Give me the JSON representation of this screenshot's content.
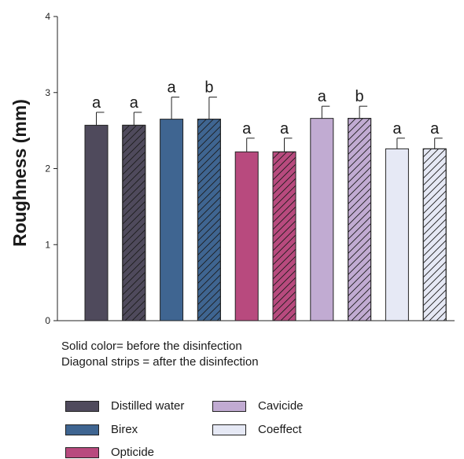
{
  "chart_data": {
    "type": "bar",
    "ylabel": "Roughness (mm)",
    "xlabel": "",
    "ylim": [
      0,
      4
    ],
    "yticks": [
      "0",
      "1",
      "2",
      "3",
      "4"
    ],
    "grid": false,
    "series": [
      {
        "name": "Distilled water",
        "color": "#4f4a5c",
        "before": 2.57,
        "after": 2.57,
        "before_error": 0.17,
        "after_error": 0.17,
        "before_letter": "a",
        "after_letter": "a"
      },
      {
        "name": "Birex",
        "color": "#3f6591",
        "before": 2.65,
        "after": 2.65,
        "before_error": 0.29,
        "after_error": 0.29,
        "before_letter": "a",
        "after_letter": "b"
      },
      {
        "name": "Opticide",
        "color": "#b84a7e",
        "before": 2.22,
        "after": 2.22,
        "before_error": 0.18,
        "after_error": 0.18,
        "before_letter": "a",
        "after_letter": "a"
      },
      {
        "name": "Cavicide",
        "color": "#c1abd2",
        "before": 2.66,
        "after": 2.66,
        "before_error": 0.16,
        "after_error": 0.16,
        "before_letter": "a",
        "after_letter": "b"
      },
      {
        "name": "Coeffect",
        "color": "#e6e9f5",
        "before": 2.26,
        "after": 2.26,
        "before_error": 0.14,
        "after_error": 0.14,
        "before_letter": "a",
        "after_letter": "a"
      }
    ]
  },
  "notes": {
    "solid": "Solid color= before the disinfection",
    "striped": "Diagonal strips = after the disinfection"
  },
  "legend": {
    "items": [
      "Distilled water",
      "Birex",
      "Opticide",
      "Cavicide",
      "Coeffect"
    ]
  }
}
